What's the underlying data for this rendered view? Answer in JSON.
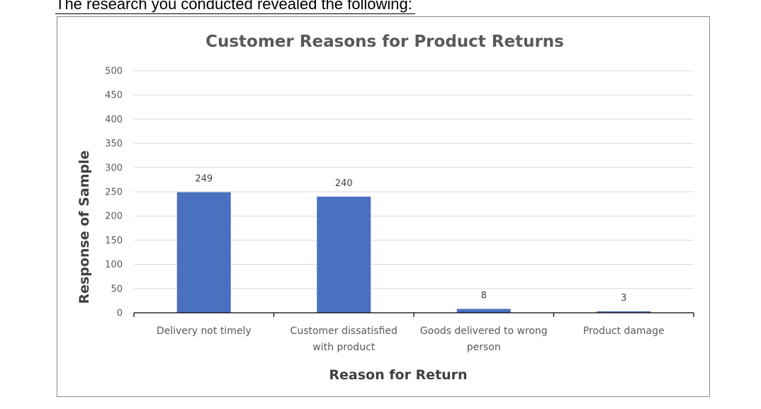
{
  "intro_text": "The research you conducted revealed the following:",
  "colors": {
    "bar": "#4a70c0",
    "grid": "#d9d9d9",
    "axis": "#000000"
  },
  "chart_data": {
    "type": "bar",
    "title": "Customer Reasons for Product Returns",
    "xlabel": "Reason for Return",
    "ylabel": "Response of Sample",
    "categories": [
      "Delivery not timely",
      "Customer dissatisfied with product",
      "Goods delivered to wrong person",
      "Product damage"
    ],
    "category_lines": [
      [
        "Delivery not timely"
      ],
      [
        "Customer dissatisfied",
        "with product"
      ],
      [
        "Goods delivered to wrong",
        "person"
      ],
      [
        "Product damage"
      ]
    ],
    "series": [
      {
        "values": [
          249,
          240,
          8,
          3
        ]
      }
    ],
    "data_labels": [
      "249",
      "240",
      "8",
      "3"
    ],
    "ylim": [
      0,
      500
    ],
    "yticks": [
      0,
      50,
      100,
      150,
      200,
      250,
      300,
      350,
      400,
      450,
      500
    ],
    "grid": true,
    "legend": "none"
  }
}
